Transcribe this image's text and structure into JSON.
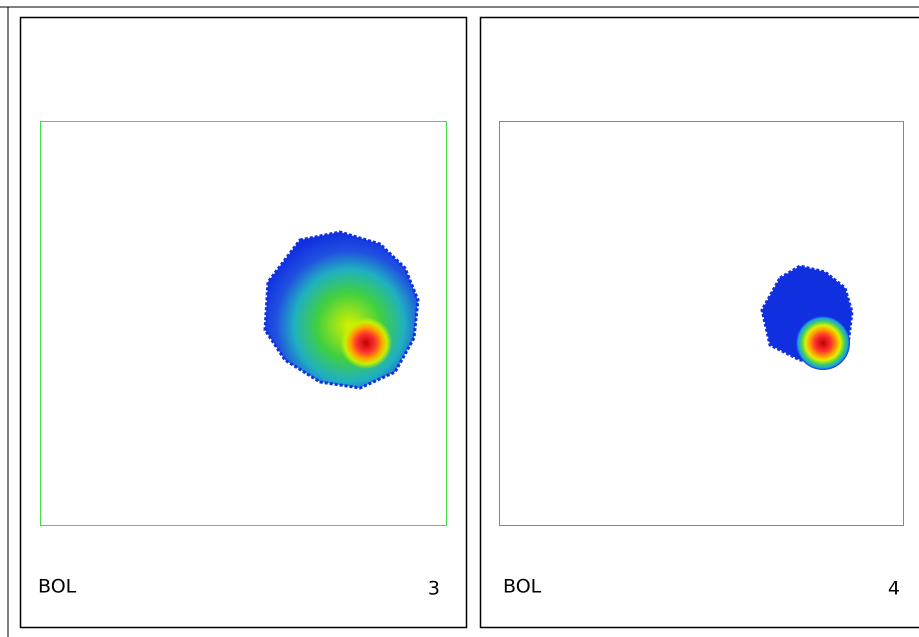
{
  "panels": [
    {
      "label": "BOL",
      "number": "3"
    },
    {
      "label": "BOL",
      "number": "4"
    }
  ]
}
